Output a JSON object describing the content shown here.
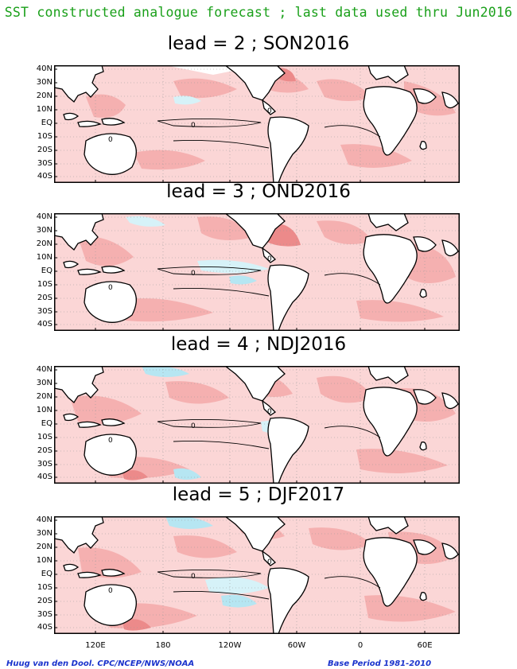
{
  "title": "SST constructed analogue forecast ; last data used thru Jun2016",
  "panels": [
    {
      "title": "lead = 2 ; SON2016"
    },
    {
      "title": "lead = 3 ; OND2016"
    },
    {
      "title": "lead = 4 ; NDJ2016"
    },
    {
      "title": "lead = 5 ; DJF2017"
    }
  ],
  "lat_labels": [
    "40N",
    "30N",
    "20N",
    "10N",
    "EQ",
    "10S",
    "20S",
    "30S",
    "40S"
  ],
  "lon_labels": [
    "120E",
    "180",
    "120W",
    "60W",
    "0",
    "60E"
  ],
  "contour_label": "0",
  "footer": {
    "left": "Huug van den Dool. CPC/NCEP/NWS/NOAA",
    "right": "Base Period 1981-2010"
  },
  "colors": {
    "title": "#1aa01a",
    "footer": "#1a33cc",
    "warm_light": "#fbd6d6",
    "warm_mid": "#f5b0b0",
    "warm_strong": "#ec8a8a",
    "cool_light": "#d6f2f8",
    "cool_mid": "#b6e6f2"
  }
}
